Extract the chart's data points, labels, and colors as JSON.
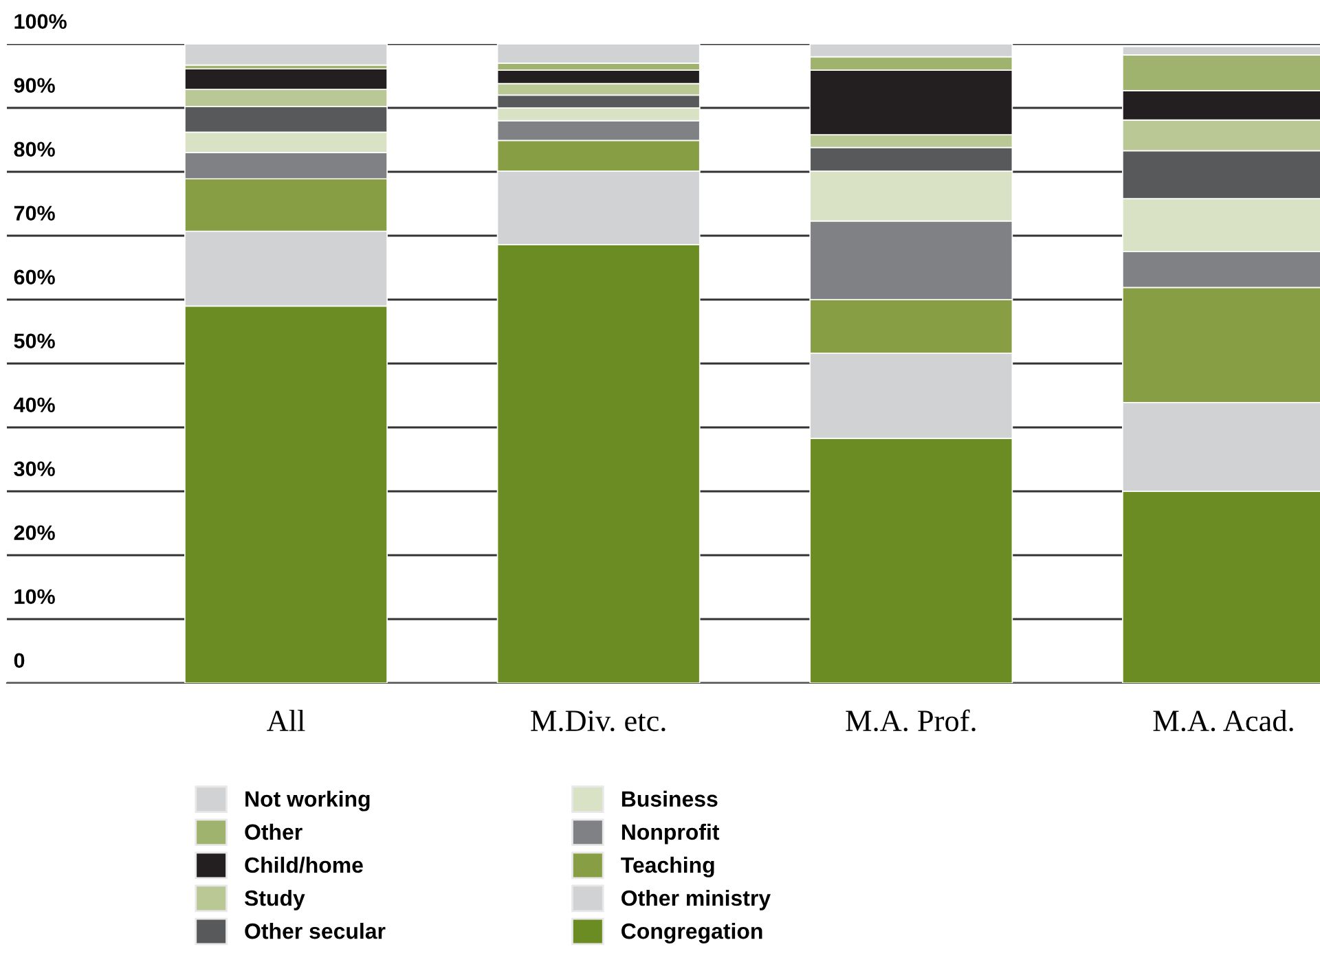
{
  "chart_data": {
    "type": "bar",
    "stacked": true,
    "categories": [
      "All",
      "M.Div. etc.",
      "M.A. Prof.",
      "M.A. Acad."
    ],
    "series": [
      {
        "name": "Congregation",
        "color": "#6b8c23",
        "values": [
          59.0,
          68.6,
          38.3,
          30.0
        ]
      },
      {
        "name": "Other ministry",
        "color": "#d1d2d4",
        "values": [
          11.7,
          11.5,
          13.3,
          13.9
        ]
      },
      {
        "name": "Teaching",
        "color": "#879e45",
        "values": [
          8.2,
          4.8,
          8.4,
          18.0
        ]
      },
      {
        "name": "Nonprofit",
        "color": "#808184",
        "values": [
          4.1,
          3.1,
          12.3,
          5.6
        ]
      },
      {
        "name": "Business",
        "color": "#d9e2c4",
        "values": [
          3.2,
          2.0,
          7.8,
          8.3
        ]
      },
      {
        "name": "Other secular",
        "color": "#58595b",
        "values": [
          4.0,
          2.0,
          3.7,
          7.5
        ]
      },
      {
        "name": "Study",
        "color": "#bac896",
        "values": [
          2.7,
          1.8,
          2.0,
          4.8
        ]
      },
      {
        "name": "Child/home",
        "color": "#231f20",
        "values": [
          3.2,
          2.1,
          10.1,
          4.6
        ]
      },
      {
        "name": "Other",
        "color": "#a0b36e",
        "values": [
          0.6,
          1.1,
          2.1,
          5.6
        ]
      },
      {
        "name": "Not working",
        "color": "#d1d2d4",
        "values": [
          3.3,
          3.0,
          2.0,
          1.3
        ]
      }
    ],
    "ylim": [
      0,
      100
    ],
    "yticks": [
      {
        "value": 0,
        "label": "0"
      },
      {
        "value": 10,
        "label": "10%"
      },
      {
        "value": 20,
        "label": "20%"
      },
      {
        "value": 30,
        "label": "30%"
      },
      {
        "value": 40,
        "label": "40%"
      },
      {
        "value": 50,
        "label": "50%"
      },
      {
        "value": 60,
        "label": "60%"
      },
      {
        "value": 70,
        "label": "70%"
      },
      {
        "value": 80,
        "label": "80%"
      },
      {
        "value": 90,
        "label": "90%"
      },
      {
        "value": 100,
        "label": "100%"
      }
    ],
    "grid": "y",
    "legend": "bottom"
  }
}
